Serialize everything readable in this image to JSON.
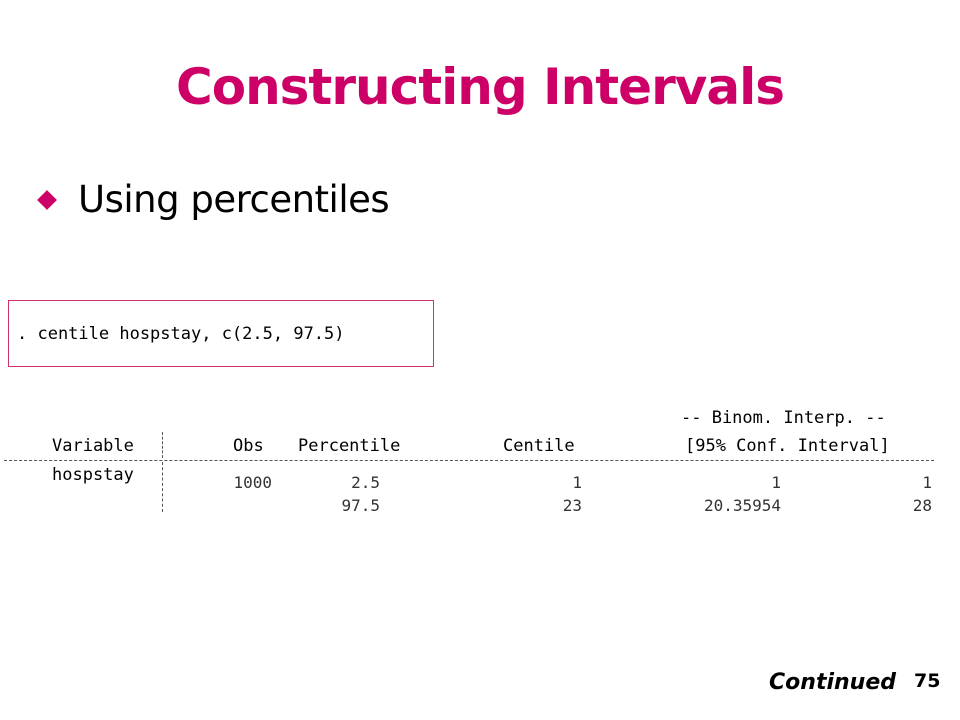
{
  "slide": {
    "title": "Constructing Intervals",
    "bullet": "Using percentiles",
    "footer_continued": "Continued",
    "page_number": "75"
  },
  "command": ". centile hospstay, c(2.5, 97.5)",
  "table": {
    "group_header": "-- Binom. Interp. --",
    "headers": {
      "variable": "Variable",
      "obs": "Obs",
      "percentile": "Percentile",
      "centile": "Centile",
      "conf_interval": "[95% Conf. Interval]"
    },
    "variable_name": "hospstay",
    "rows": [
      {
        "obs": "1000",
        "percentile": "2.5",
        "centile": "1",
        "lower": "1",
        "upper": "1"
      },
      {
        "obs": "",
        "percentile": "97.5",
        "centile": "23",
        "lower": "20.35954",
        "upper": "28"
      }
    ]
  },
  "colors": {
    "accent": "#cc0066"
  }
}
